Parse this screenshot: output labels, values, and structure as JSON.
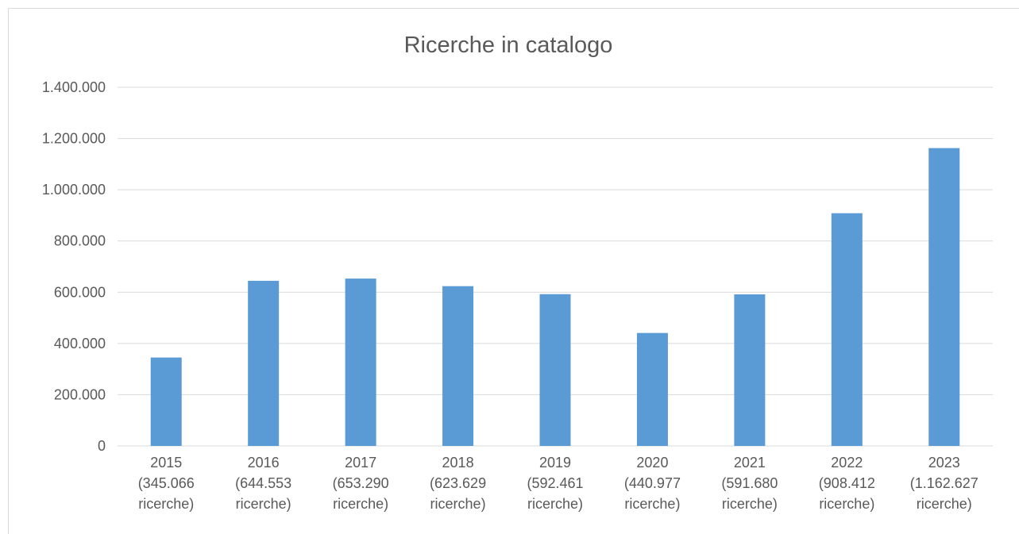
{
  "chart_data": {
    "type": "bar",
    "title": "Ricerche in catalogo",
    "categories": [
      "2015\n(345.066\nricerche)",
      "2016\n(644.553\nricerche)",
      "2017\n(653.290\nricerche)",
      "2018\n(623.629\nricerche)",
      "2019\n(592.461\nricerche)",
      "2020\n(440.977\nricerche)",
      "2021\n(591.680\nricerche)",
      "2022\n(908.412\nricerche)",
      "2023\n(1.162.627\nricerche)"
    ],
    "values": [
      345066,
      644553,
      653290,
      623629,
      592461,
      440977,
      591680,
      908412,
      1162627
    ],
    "color": "#5b9bd5",
    "ylim": [
      0,
      1400000
    ],
    "yticks": [
      0,
      {
        "value": 200000,
        "label": "200.000"
      },
      {
        "value": 400000,
        "label": "400.000"
      },
      {
        "value": 600000,
        "label": "600.000"
      },
      {
        "value": 800000,
        "label": "800.000"
      },
      {
        "value": 1000000,
        "label": "1.000.000"
      },
      {
        "value": 1200000,
        "label": "1.200.000"
      },
      {
        "value": 1400000,
        "label": "1.400.000"
      }
    ],
    "grid": true
  }
}
